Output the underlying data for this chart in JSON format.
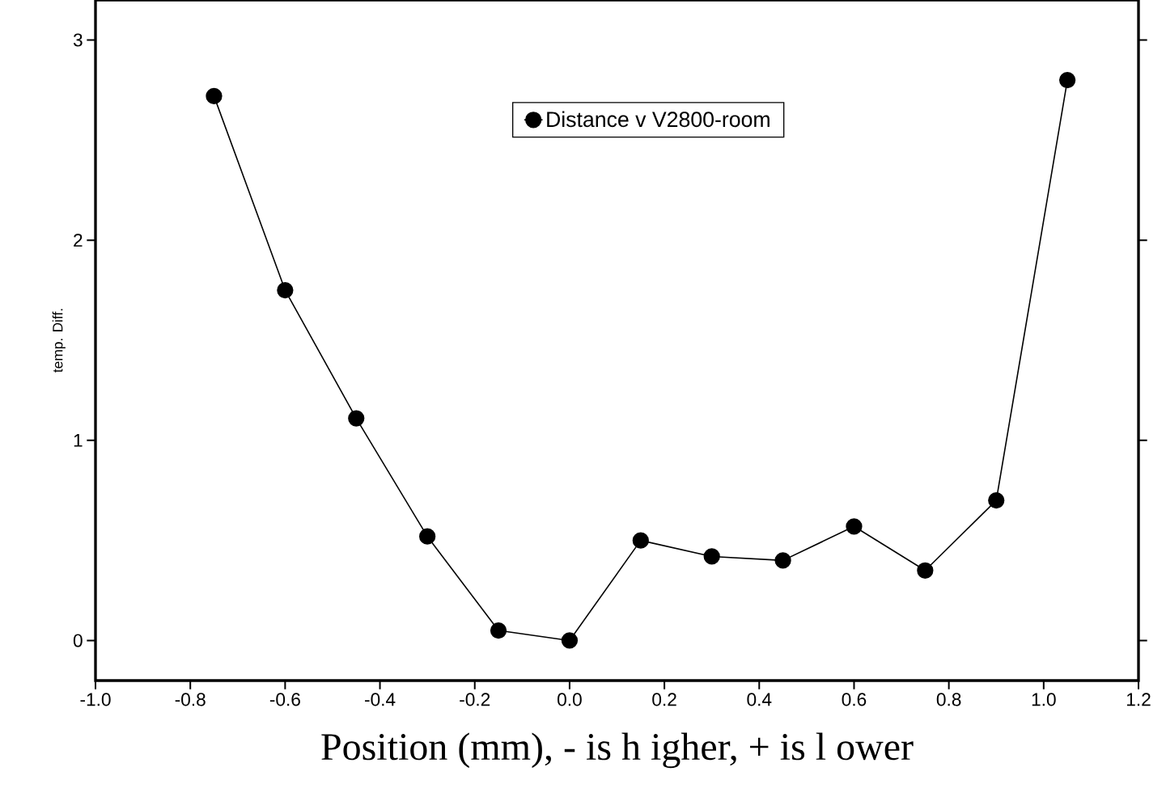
{
  "chart_data": {
    "type": "line",
    "xlabel": "Position (mm), - is h igher, + is l ower",
    "ylabel": "temp. Diff.",
    "x": [
      -0.75,
      -0.6,
      -0.45,
      -0.3,
      -0.15,
      0,
      0.15,
      0.3,
      0.45,
      0.6,
      0.75,
      0.9,
      1.05
    ],
    "series": [
      {
        "name": "Distance v V2800-room",
        "color": "#000000",
        "values": [
          2.72,
          1.75,
          1.11,
          0.52,
          0.05,
          0,
          0.5,
          0.42,
          0.4,
          0.57,
          0.35,
          0.7,
          2.8
        ]
      }
    ],
    "xlim": [
      -1,
      1.2
    ],
    "ylim": [
      -0.2,
      3.2
    ],
    "xticks": [
      {
        "value": -1,
        "label": "-1.0"
      },
      -0.8,
      -0.6,
      -0.4,
      -0.2,
      {
        "value": 0,
        "label": "0.0"
      },
      0.2,
      0.4,
      0.6,
      0.8,
      {
        "value": 1,
        "label": "1.0"
      },
      1.2
    ],
    "yticks": [
      0,
      1,
      2,
      3
    ],
    "marker": "circle",
    "line_style": "solid",
    "legend": "top",
    "grid": false
  }
}
